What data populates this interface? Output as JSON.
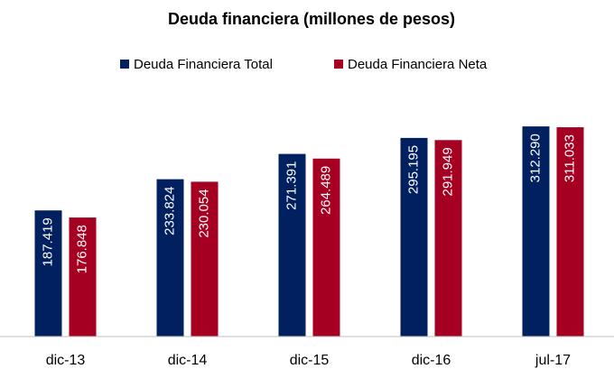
{
  "chart_data": {
    "type": "bar",
    "title": "Deuda financiera (millones de pesos)",
    "categories": [
      "dic-13",
      "dic-14",
      "dic-15",
      "dic-16",
      "jul-17"
    ],
    "series": [
      {
        "name": "Deuda Financiera Total",
        "color": "#002060",
        "values": [
          187419,
          233824,
          271391,
          295195,
          312290
        ],
        "value_labels": [
          "187.419",
          "233.824",
          "271.391",
          "295.195",
          "312.290"
        ]
      },
      {
        "name": "Deuda Financiera Neta",
        "color": "#a50021",
        "values": [
          176848,
          230054,
          264489,
          291949,
          311033
        ],
        "value_labels": [
          "176.848",
          "230.054",
          "264.489",
          "291.949",
          "311.033"
        ]
      }
    ],
    "ylim": [
      0,
      350000
    ]
  }
}
